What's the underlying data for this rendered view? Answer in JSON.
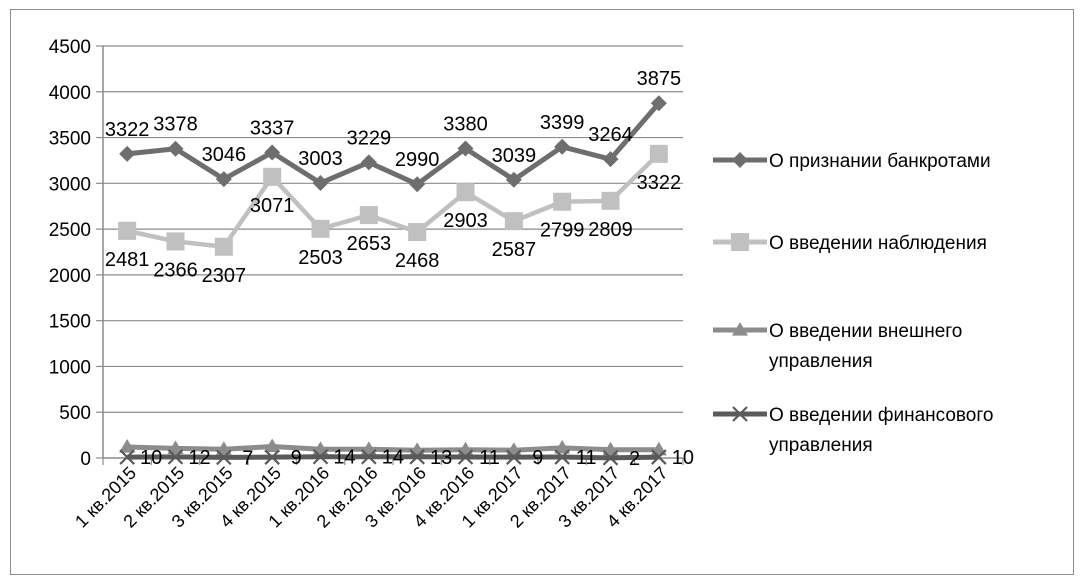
{
  "chart_data": {
    "type": "line",
    "categories": [
      "1 кв.2015",
      "2 кв.2015",
      "3 кв.2015",
      "4 кв.2015",
      "1 кв.2016",
      "2 кв.2016",
      "3 кв.2016",
      "4 кв.2016",
      "1 кв.2017",
      "2 кв.2017",
      "3 кв.2017",
      "4 кв.2017"
    ],
    "ylim": [
      0,
      4500
    ],
    "yticks": [
      0,
      500,
      1000,
      1500,
      2000,
      2500,
      3000,
      3500,
      4000,
      4500
    ],
    "grid": true,
    "legend_position": "right",
    "series": [
      {
        "name": "О признании банкротами",
        "color": "#6e6e6e",
        "marker": "diamond",
        "label_pos": "above",
        "values": [
          3322,
          3378,
          3046,
          3337,
          3003,
          3229,
          2990,
          3380,
          3039,
          3399,
          3264,
          3875
        ],
        "labels": [
          "3322",
          "3378",
          "3046",
          "3337",
          "3003",
          "3229",
          "2990",
          "3380",
          "3039",
          "3399",
          "3264",
          "3875"
        ]
      },
      {
        "name": "О введении наблюдения",
        "color": "#c0c0c0",
        "marker": "square",
        "label_pos": "below",
        "values": [
          2481,
          2366,
          2307,
          3071,
          2503,
          2653,
          2468,
          2903,
          2587,
          2799,
          2809,
          3322
        ],
        "labels": [
          "2481",
          "2366",
          "2307",
          "3071",
          "2503",
          "2653",
          "2468",
          "2903",
          "2587",
          "2799",
          "2809",
          "3322"
        ]
      },
      {
        "name": "О введении внешнего управления",
        "color": "#8c8c8c",
        "marker": "triangle",
        "label_pos": "none",
        "values": [
          120,
          105,
          95,
          125,
          95,
          95,
          85,
          90,
          85,
          110,
          90,
          90
        ],
        "labels": []
      },
      {
        "name": "О введении финансового управления",
        "color": "#5a5a5a",
        "marker": "x",
        "label_pos": "right",
        "values": [
          10,
          12,
          7,
          9,
          14,
          14,
          13,
          11,
          9,
          11,
          2,
          10
        ],
        "labels": [
          "10",
          "12",
          "7",
          "9",
          "14",
          "14",
          "13",
          "11",
          "9",
          "11",
          "2",
          "10"
        ]
      }
    ]
  }
}
